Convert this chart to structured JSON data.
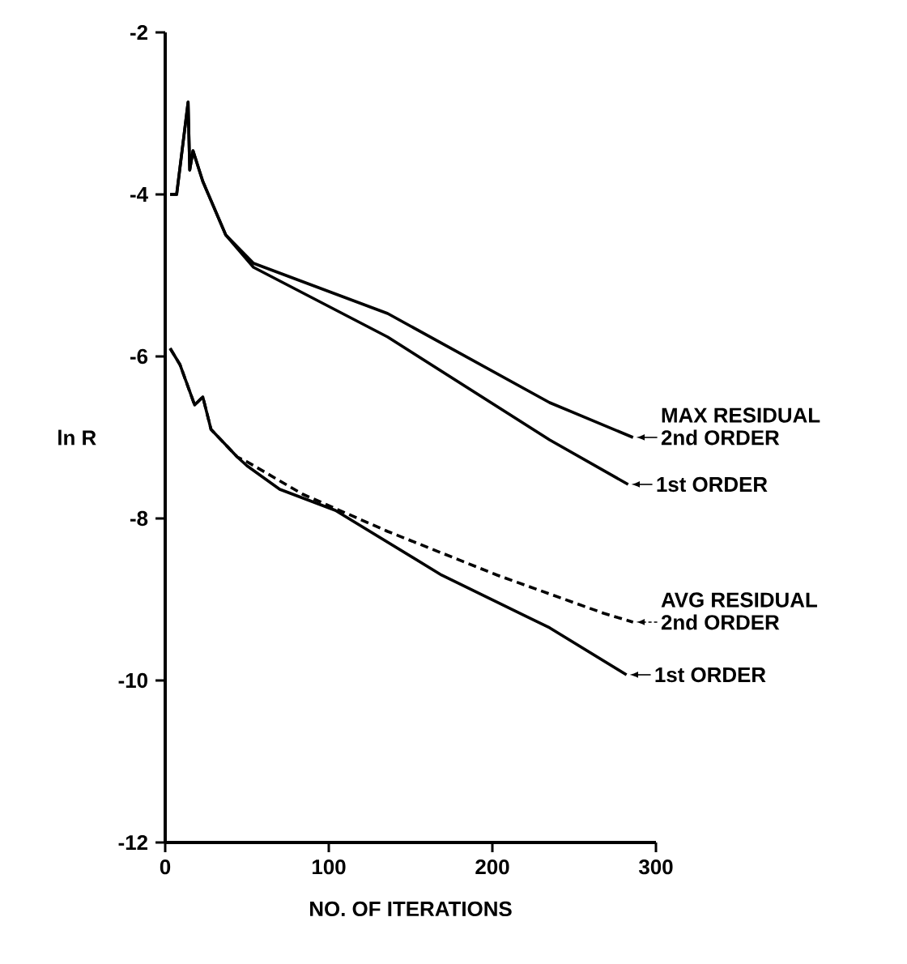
{
  "chart_data": {
    "type": "line",
    "xlabel": "NO. OF ITERATIONS",
    "ylabel": "ln R",
    "xlim": [
      0,
      300
    ],
    "ylim": [
      -12,
      -2
    ],
    "xticks": [
      0,
      100,
      200,
      300
    ],
    "yticks": [
      -12,
      -10,
      -8,
      -6,
      -4,
      -2
    ],
    "grid": false,
    "legend": "right",
    "marker": "none",
    "annotations": [
      "MAX RESIDUAL",
      "AVG RESIDUAL"
    ],
    "series": [
      {
        "name": "2nd ORDER",
        "color": "#000000",
        "line_style": "solid",
        "x": [
          3,
          7,
          14,
          15,
          17,
          23,
          37,
          54,
          136,
          235,
          286
        ],
        "values": [
          -4.0,
          -4.0,
          -2.86,
          -3.7,
          -3.46,
          -3.84,
          -4.5,
          -4.85,
          -5.47,
          -6.57,
          -7.0
        ]
      },
      {
        "name": "1st ORDER",
        "color": "#000000",
        "line_style": "solid",
        "x": [
          3,
          7,
          14,
          15,
          17,
          23,
          37,
          54,
          136,
          235,
          283
        ],
        "values": [
          -4.0,
          -4.0,
          -2.86,
          -3.7,
          -3.46,
          -3.84,
          -4.5,
          -4.9,
          -5.76,
          -7.03,
          -7.58
        ]
      },
      {
        "name": "2nd ORDER",
        "color": "#000000",
        "line_style": "dashed",
        "x": [
          3,
          6,
          9,
          18,
          23,
          28,
          44,
          50,
          84,
          136,
          203,
          268,
          286
        ],
        "values": [
          -5.9,
          -6.0,
          -6.1,
          -6.6,
          -6.5,
          -6.9,
          -7.24,
          -7.3,
          -7.7,
          -8.16,
          -8.7,
          -9.17,
          -9.28
        ]
      },
      {
        "name": "1st ORDER",
        "color": "#000000",
        "line_style": "solid",
        "x": [
          3,
          6,
          9,
          18,
          23,
          28,
          44,
          50,
          70,
          104,
          169,
          235,
          282
        ],
        "values": [
          -5.9,
          -6.0,
          -6.1,
          -6.6,
          -6.5,
          -6.9,
          -7.24,
          -7.35,
          -7.64,
          -7.9,
          -8.7,
          -9.35,
          -9.93
        ]
      }
    ]
  }
}
